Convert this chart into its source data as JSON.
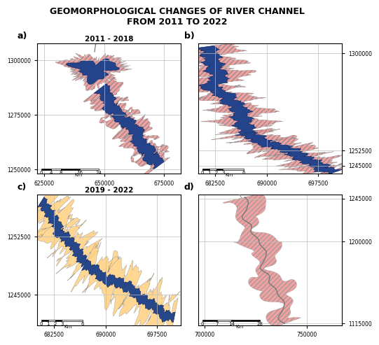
{
  "title": "GEOMORPHOLOGICAL CHANGES OF RIVER CHANNEL\nFROM 2011 TO 2022",
  "title_fontsize": 9,
  "title_fontweight": "bold",
  "panels": [
    {
      "label": "a)",
      "period": "2011 - 2018",
      "show_period": true,
      "xlim": [
        622000,
        682000
      ],
      "ylim": [
        1248000,
        1308000
      ],
      "xticks": [
        625000,
        650000,
        675000
      ],
      "xtick_labels": [
        "625000",
        "650000",
        "675000"
      ],
      "yticks": [
        1250000,
        1275000,
        1300000
      ],
      "ytick_right": false,
      "scale_ticks": [
        0,
        4,
        8,
        16,
        24
      ],
      "scale_unit": "Km",
      "erosion_color": "#f09090",
      "channel_color": "#1a3f8a",
      "hatch": true,
      "deposition": false
    },
    {
      "label": "b)",
      "period": null,
      "show_period": false,
      "xlim": [
        680000,
        701000
      ],
      "ylim": [
        1241000,
        1305000
      ],
      "xticks": [
        682500,
        690000,
        697500
      ],
      "xtick_labels": [
        "682500",
        "690000",
        "697500"
      ],
      "yticks": [
        1245000,
        1252500,
        1300000
      ],
      "ytick_right": true,
      "scale_ticks": [
        0,
        1,
        2,
        3,
        6
      ],
      "scale_unit": "Km",
      "erosion_color": "#f09090",
      "channel_color": "#1a3f8a",
      "hatch": true,
      "deposition": false
    },
    {
      "label": "c)",
      "period": "2019 - 2022",
      "show_period": true,
      "xlim": [
        680000,
        701000
      ],
      "ylim": [
        1241000,
        1258000
      ],
      "xticks": [
        682500,
        690000,
        697500
      ],
      "xtick_labels": [
        "682500",
        "690000",
        "697500"
      ],
      "yticks": [
        1245000,
        1252500
      ],
      "ytick_right": false,
      "scale_ticks": [
        0,
        1,
        2,
        3,
        6
      ],
      "scale_unit": "Km",
      "erosion_color": "#FFD080",
      "channel_color": "#1a3f8a",
      "hatch": false,
      "deposition": true
    },
    {
      "label": "d)",
      "period": null,
      "show_period": false,
      "xlim": [
        697000,
        767000
      ],
      "ylim": [
        1113000,
        1249000
      ],
      "xticks": [
        700000,
        750000
      ],
      "xtick_labels": [
        "700000",
        "750000"
      ],
      "yticks": [
        1115000,
        1200000,
        1245000
      ],
      "ytick_right": true,
      "scale_ticks": [
        0,
        7,
        14,
        28
      ],
      "scale_unit": "Km",
      "erosion_color": "#f09090",
      "channel_color": "#888888",
      "hatch": true,
      "deposition": false
    }
  ],
  "background": "#ffffff",
  "grid_color": "#bbbbbb",
  "tick_labelsize": 5.5
}
